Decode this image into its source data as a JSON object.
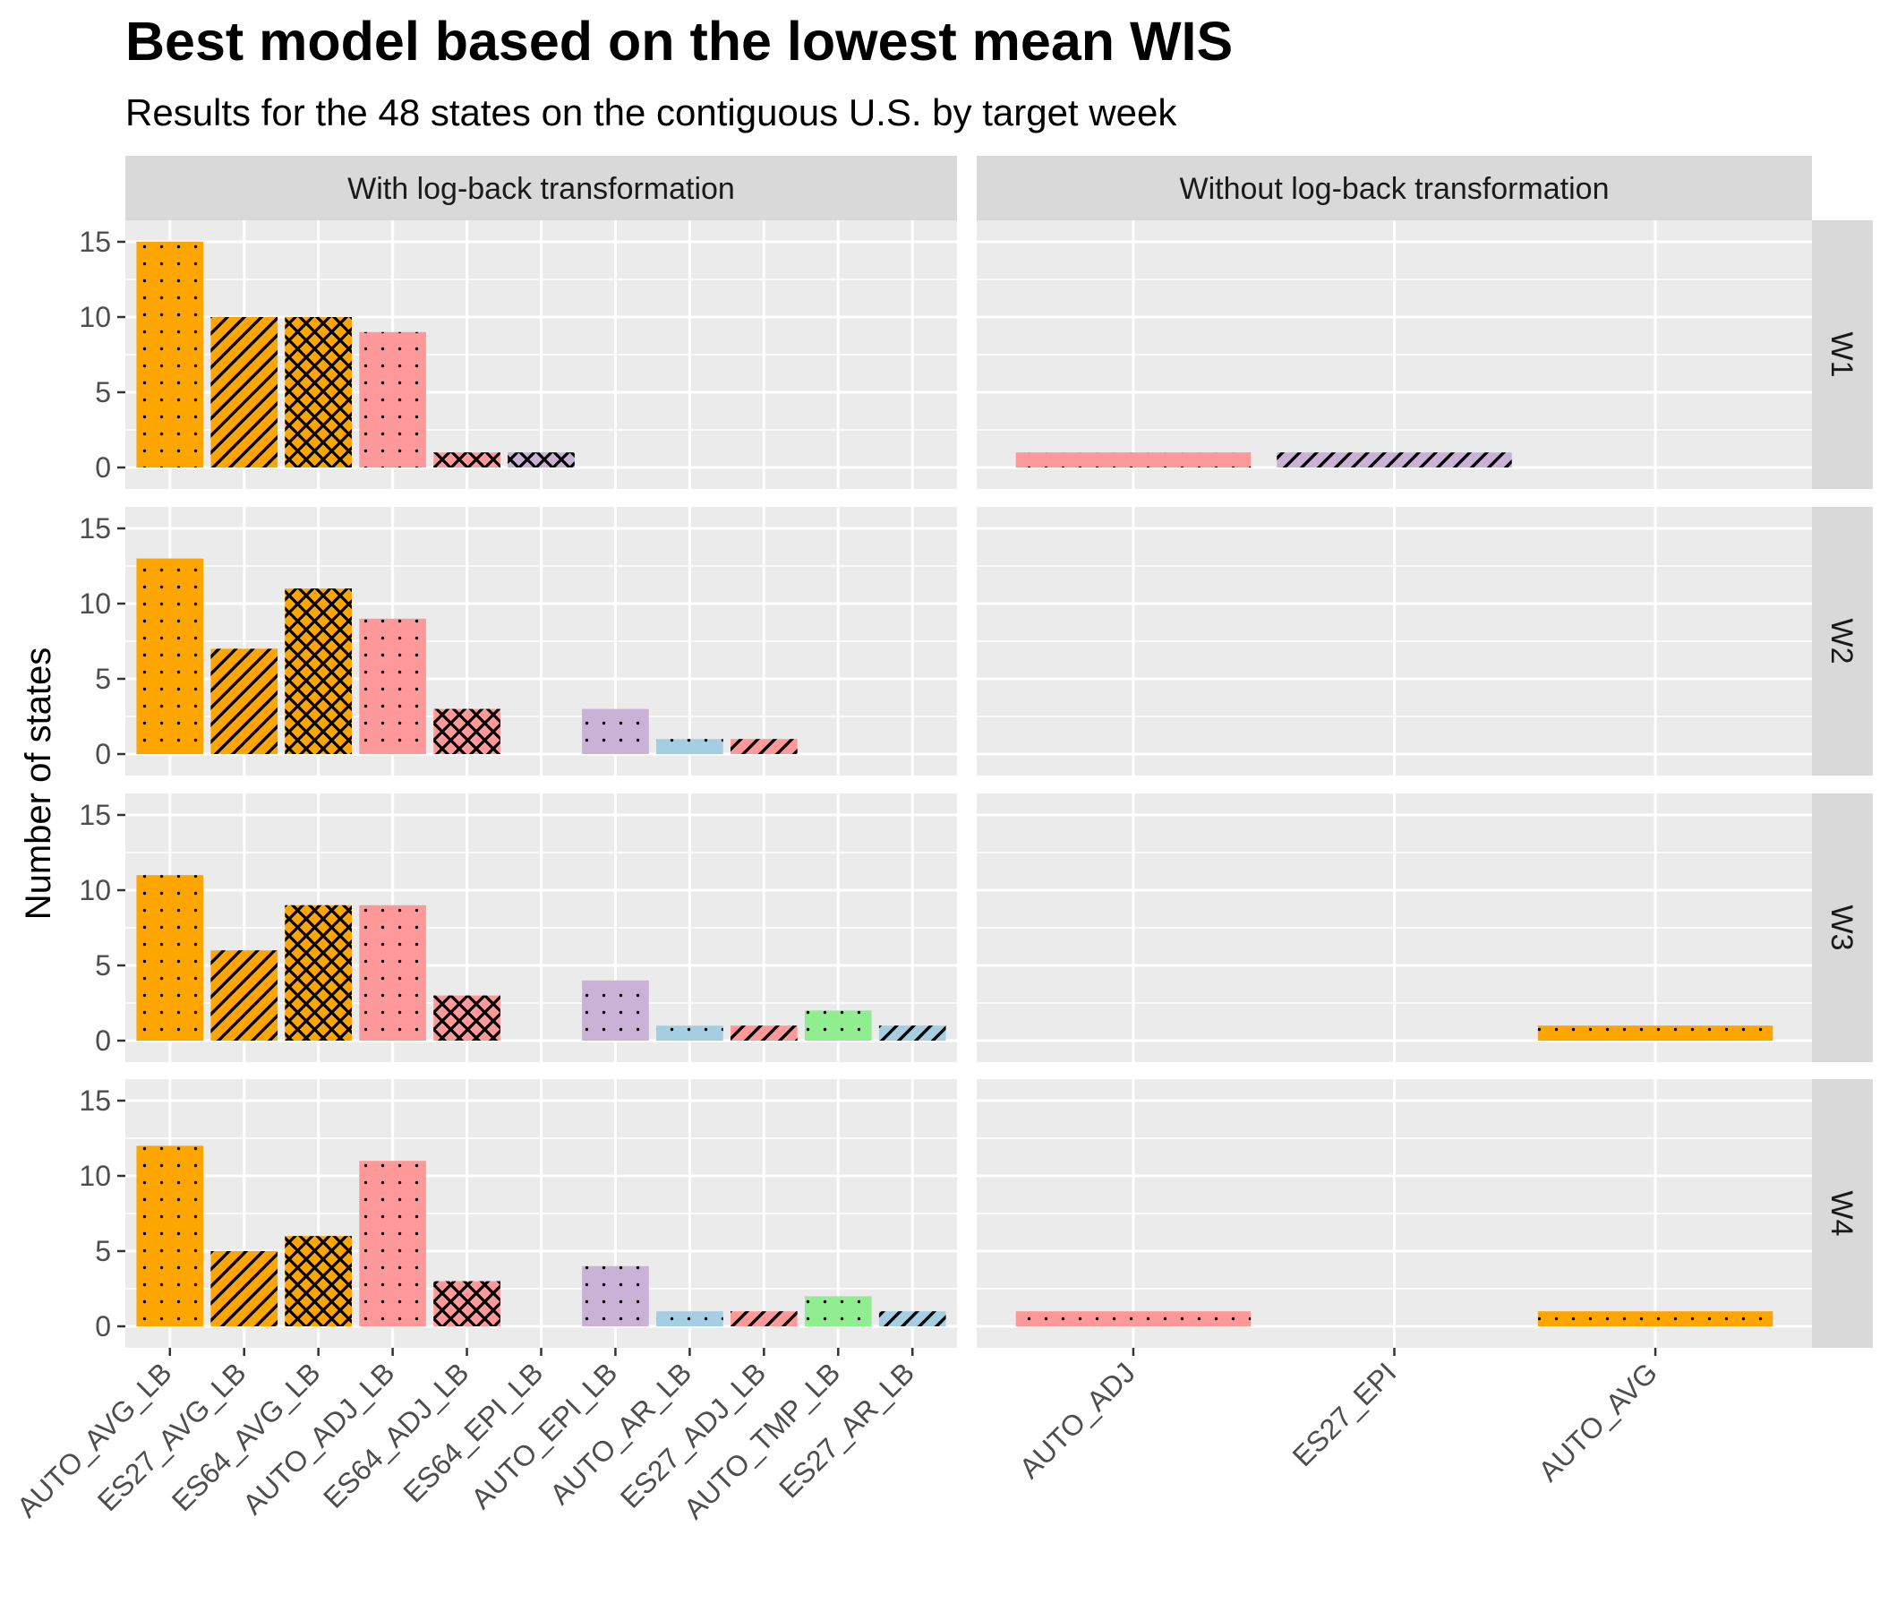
{
  "title": "Best model based on the lowest mean WIS",
  "subtitle": "Results for the 48 states on the contiguous U.S. by target week",
  "chart_data": {
    "type": "bar",
    "ylabel": "Number of states",
    "xlabel": "",
    "ylim": [
      0,
      15
    ],
    "yticks": [
      0,
      5,
      10,
      15
    ],
    "grid": true,
    "legend": "none",
    "rows": [
      "W1",
      "W2",
      "W3",
      "W4"
    ],
    "panels": [
      {
        "name": "With log-back transformation",
        "categories": [
          "AUTO_AVG_LB",
          "ES27_AVG_LB",
          "ES64_AVG_LB",
          "AUTO_ADJ_LB",
          "ES64_ADJ_LB",
          "ES64_EPI_LB",
          "AUTO_EPI_LB",
          "AUTO_AR_LB",
          "ES27_ADJ_LB",
          "AUTO_TMP_LB",
          "ES27_AR_LB"
        ],
        "bar_colors": [
          "#FFA500",
          "#FFA500",
          "#FFA500",
          "#FF9999",
          "#FF9999",
          "#CAB2D6",
          "#CAB2D6",
          "#A6CEE3",
          "#FF9999",
          "#90EE90",
          "#A6CEE3"
        ],
        "bar_patterns": [
          "dots",
          "stripes",
          "crosshatch",
          "dots",
          "crosshatch",
          "crosshatch",
          "dots",
          "dots",
          "stripes",
          "dots",
          "stripes"
        ],
        "values": {
          "W1": [
            15,
            10,
            10,
            9,
            1,
            1,
            0,
            0,
            0,
            0,
            0
          ],
          "W2": [
            13,
            7,
            11,
            9,
            3,
            0,
            3,
            1,
            1,
            0,
            0
          ],
          "W3": [
            11,
            6,
            9,
            9,
            3,
            0,
            4,
            1,
            1,
            2,
            1
          ],
          "W4": [
            12,
            5,
            6,
            11,
            3,
            0,
            4,
            1,
            1,
            2,
            1
          ]
        }
      },
      {
        "name": "Without log-back transformation",
        "categories": [
          "AUTO_ADJ",
          "ES27_EPI",
          "AUTO_AVG"
        ],
        "bar_colors": [
          "#FF9999",
          "#CAB2D6",
          "#FFA500"
        ],
        "bar_patterns": [
          "dots",
          "stripes",
          "dots"
        ],
        "values": {
          "W1": [
            1,
            1,
            0
          ],
          "W2": [
            0,
            0,
            0
          ],
          "W3": [
            0,
            0,
            1
          ],
          "W4": [
            1,
            0,
            1
          ]
        }
      }
    ]
  }
}
